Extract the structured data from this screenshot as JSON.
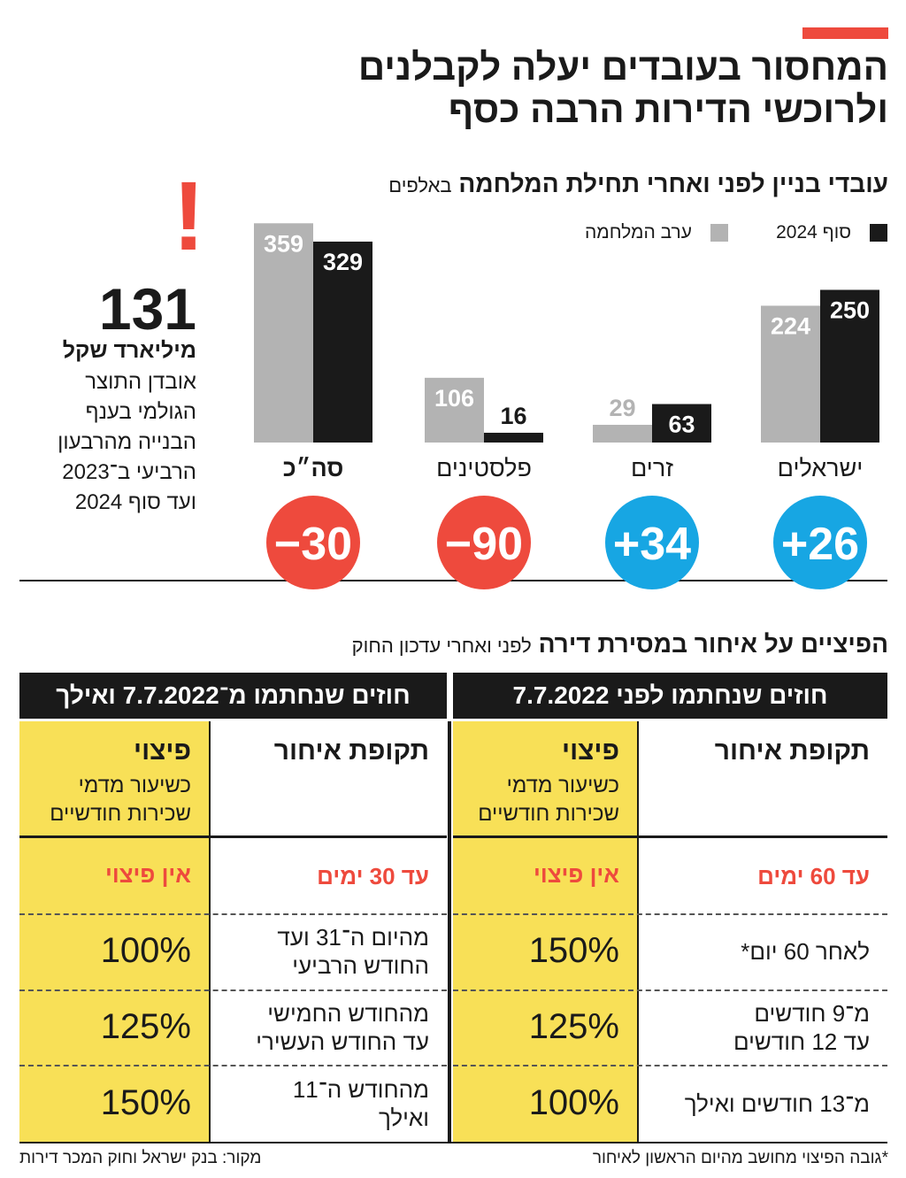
{
  "header": {
    "title": [
      "המחסור בעובדים יעלה לקבלנים",
      "ולרוכשי הדירות הרבה כסף"
    ]
  },
  "chart_data": {
    "type": "bar",
    "title": "עובדי בניין לפני ואחרי תחילת המלחמה",
    "unit": "באלפים",
    "categories": [
      "ישראלים",
      "זרים",
      "פלסטינים",
      "סה״כ"
    ],
    "series": [
      {
        "name": "ערב המלחמה",
        "color": "#b3b3b3",
        "values": [
          224,
          29,
          106,
          359
        ]
      },
      {
        "name": "סוף 2024",
        "color": "#1a1a1a",
        "values": [
          250,
          63,
          16,
          329
        ]
      }
    ],
    "ylim": [
      0,
      400
    ],
    "differences": {
      "values": [
        26,
        34,
        -90,
        -30
      ],
      "value_labels": [
        "+26",
        "+34",
        "−90",
        "−30"
      ],
      "positive_color": "#17a6e3",
      "negative_color": "#ee4a3d"
    }
  },
  "annotation": {
    "mark": "!",
    "value": "131",
    "unit": "מיליארד שקל",
    "lines": [
      "אובדן התוצר",
      "הגולמי בענף",
      "הבנייה מהרבעון",
      "הרביעי ב־2023",
      "ועד סוף 2024"
    ]
  },
  "table": {
    "title": "הפיציים על איחור במסירת דירה",
    "subtitle": "לפני ואחרי עדכון החוק",
    "blocks": [
      {
        "heading": "חוזים שנחתמו לפני 7.7.2022",
        "delay_header": "תקופת איחור",
        "comp_header": "פיצוי",
        "comp_sub": [
          "כשיעור מדמי",
          "שכירות חודשיים"
        ],
        "rows": [
          {
            "delay": [
              "עד 60 ימים"
            ],
            "comp": "אין פיצוי"
          },
          {
            "delay": [
              "לאחר 60 יום*"
            ],
            "comp": "150%"
          },
          {
            "delay": [
              "מ־9 חודשים",
              "עד 12 חודשים"
            ],
            "comp": "125%"
          },
          {
            "delay": [
              "מ־13 חודשים ואילך"
            ],
            "comp": "100%"
          }
        ]
      },
      {
        "heading": "חוזים שנחתמו מ־7.7.2022 ואילך",
        "delay_header": "תקופת איחור",
        "comp_header": "פיצוי",
        "comp_sub": [
          "כשיעור מדמי",
          "שכירות חודשיים"
        ],
        "rows": [
          {
            "delay": [
              "עד 30 ימים"
            ],
            "comp": "אין פיצוי"
          },
          {
            "delay": [
              "מהיום ה־31 ועד",
              "החודש הרביעי"
            ],
            "comp": "100%"
          },
          {
            "delay": [
              "מהחודש החמישי",
              "עד החודש העשירי"
            ],
            "comp": "125%"
          },
          {
            "delay": [
              "מהחודש ה־11",
              "ואילך"
            ],
            "comp": "150%"
          }
        ]
      }
    ]
  },
  "footer": {
    "note": "*גובה הפיצוי מחושב מהיום הראשון לאיחור",
    "source": "מקור: בנק ישראל וחוק המכר דירות"
  }
}
